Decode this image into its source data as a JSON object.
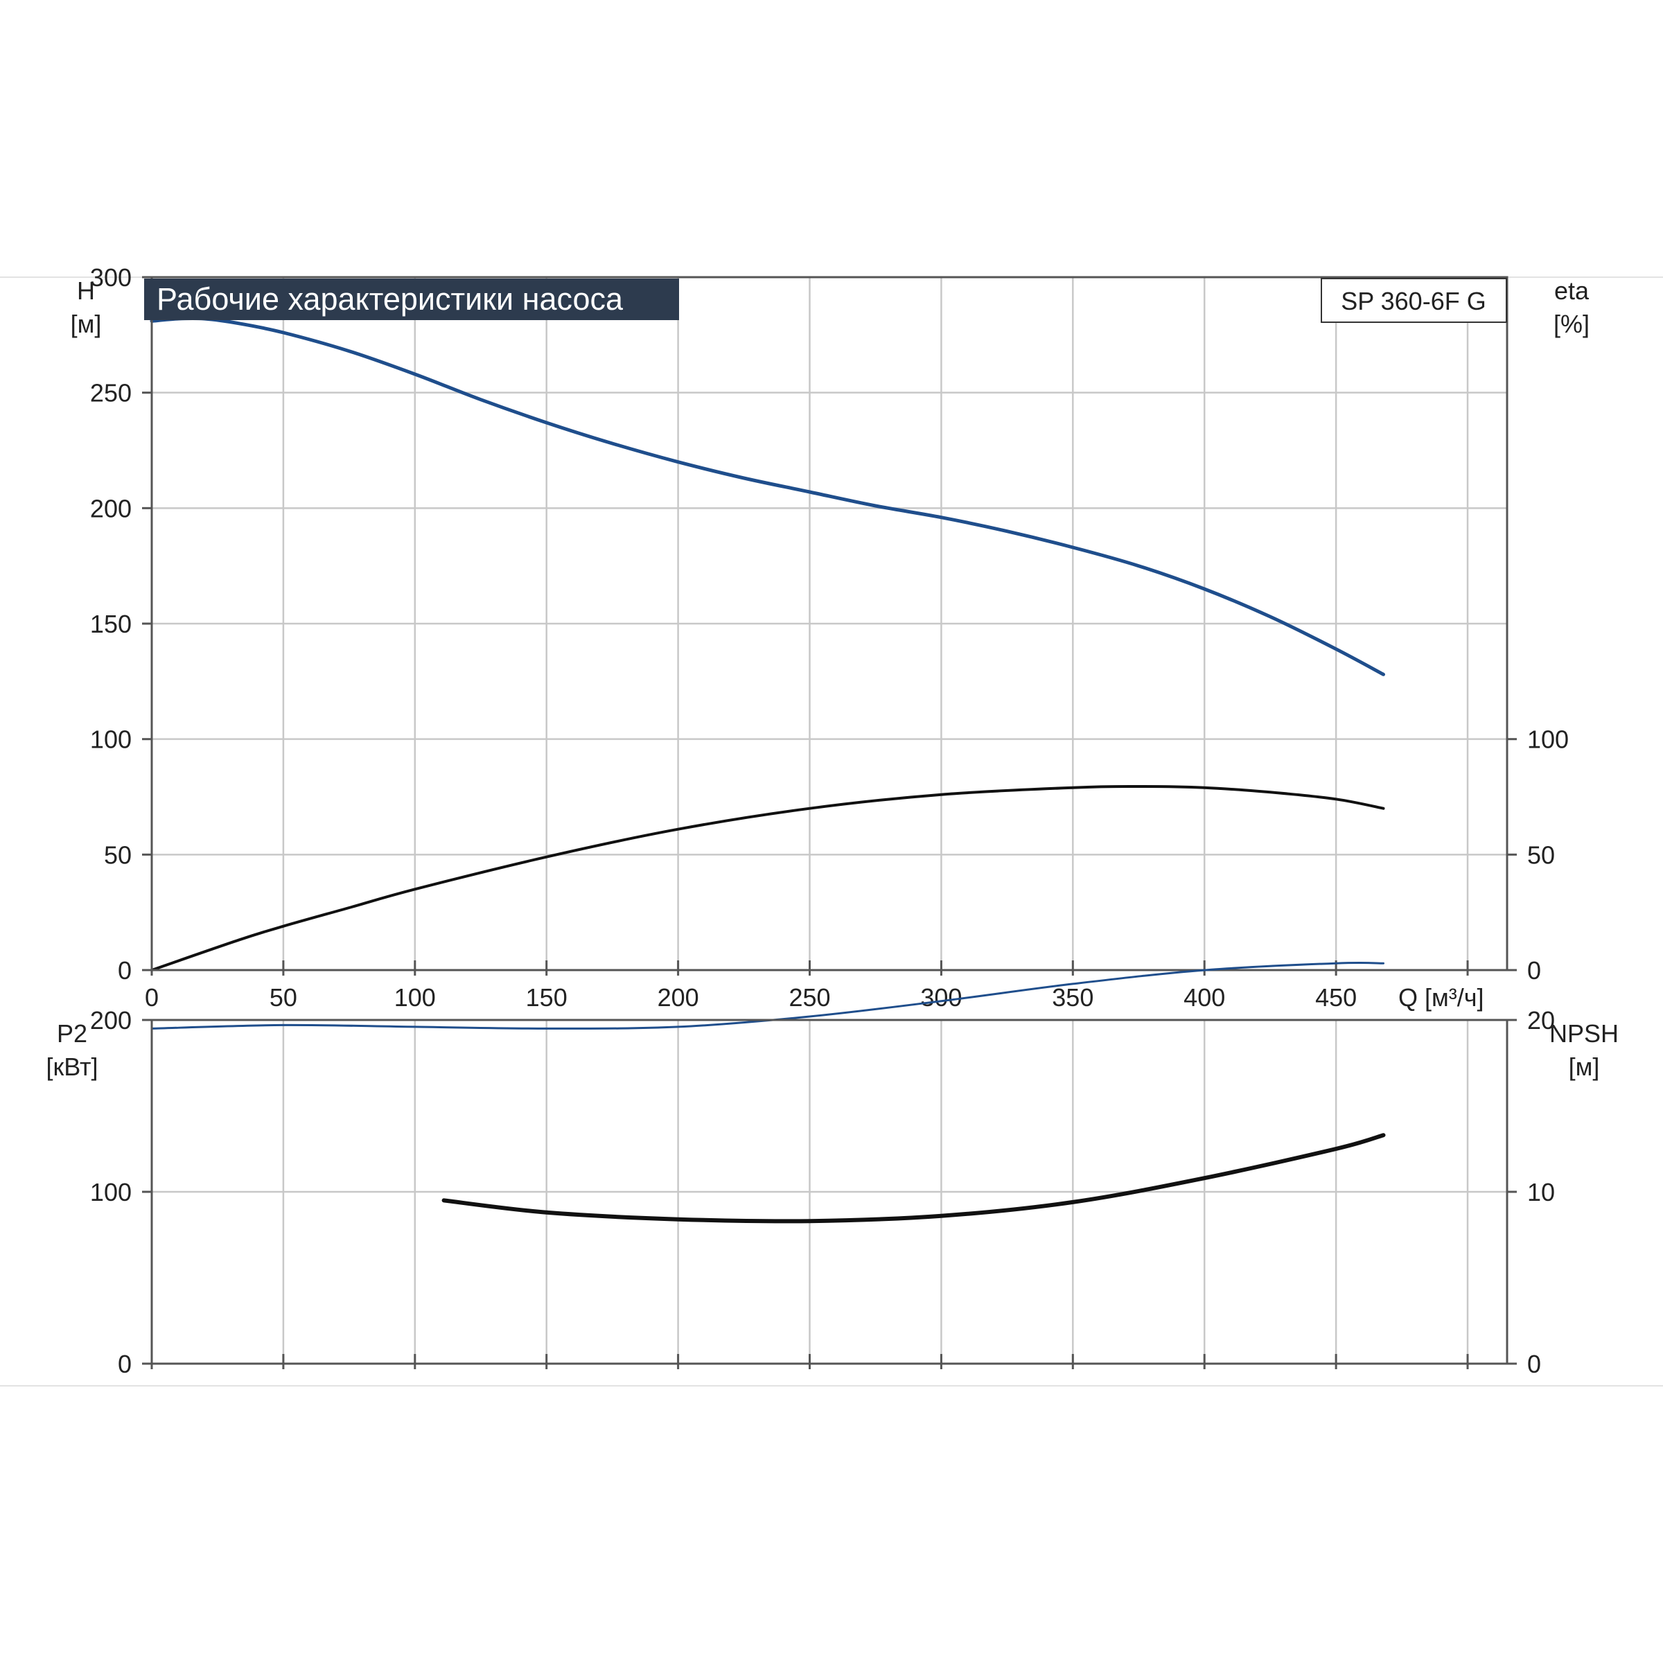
{
  "chart_data": [
    {
      "type": "line",
      "title": "Рабочие характеристики насоса",
      "model_label": "SP 360-6F G",
      "xlabel": "Q [м³/ч]",
      "xlim": [
        0,
        515
      ],
      "xticks": [
        0,
        50,
        100,
        150,
        200,
        250,
        300,
        350,
        400,
        450
      ],
      "grid": true,
      "ylabel": [
        "H",
        "[м]"
      ],
      "ylim": [
        0,
        300
      ],
      "yticks": [
        0,
        50,
        100,
        150,
        200,
        250,
        300
      ],
      "y2label": [
        "eta",
        "[%]"
      ],
      "y2lim": [
        0,
        300
      ],
      "y2ticks": [
        0,
        50,
        100
      ],
      "colors": {
        "head": "#1f4e8c",
        "efficiency": "#111111",
        "grid": "#c8c8c8",
        "title_bg": "#2d3b4e"
      },
      "series": [
        {
          "name": "H",
          "axis": "left",
          "x": [
            0,
            10,
            20,
            33,
            50,
            75,
            100,
            125,
            150,
            175,
            200,
            225,
            250,
            275,
            300,
            325,
            350,
            375,
            400,
            425,
            450,
            468
          ],
          "y": [
            281,
            282,
            282,
            280,
            276,
            268,
            258,
            247,
            237,
            228,
            220,
            213,
            207,
            201,
            196,
            190,
            183,
            175,
            165,
            153,
            139,
            128
          ]
        },
        {
          "name": "eta",
          "axis": "right",
          "x": [
            0,
            33,
            50,
            75,
            100,
            150,
            200,
            250,
            300,
            350,
            375,
            400,
            425,
            450,
            468
          ],
          "y": [
            0,
            13,
            19,
            27,
            35,
            49,
            61,
            70,
            76,
            79,
            79.5,
            79,
            77,
            74,
            70
          ]
        }
      ]
    },
    {
      "type": "line",
      "xlim": [
        0,
        515
      ],
      "xticks": [
        0,
        50,
        100,
        150,
        200,
        250,
        300,
        350,
        400,
        450
      ],
      "grid": true,
      "ylabel": [
        "P2",
        "[кВт]"
      ],
      "ylim": [
        0,
        200
      ],
      "yticks": [
        0,
        100,
        200
      ],
      "y2label": [
        "NPSH",
        "[м]"
      ],
      "y2lim": [
        0,
        20
      ],
      "y2ticks": [
        0,
        10,
        20
      ],
      "colors": {
        "power": "#1f4e8c",
        "npsh": "#111111"
      },
      "series": [
        {
          "name": "P2",
          "axis": "left",
          "x": [
            0,
            50,
            100,
            150,
            200,
            250,
            300,
            350,
            400,
            450,
            468
          ],
          "y": [
            195,
            197,
            196,
            195,
            196,
            202,
            211,
            221,
            229,
            233,
            233
          ]
        },
        {
          "name": "NPSH",
          "axis": "right",
          "x": [
            111,
            150,
            200,
            250,
            300,
            350,
            400,
            450,
            468
          ],
          "y": [
            9.5,
            8.8,
            8.4,
            8.3,
            8.6,
            9.4,
            10.8,
            12.5,
            13.3
          ]
        }
      ]
    }
  ]
}
